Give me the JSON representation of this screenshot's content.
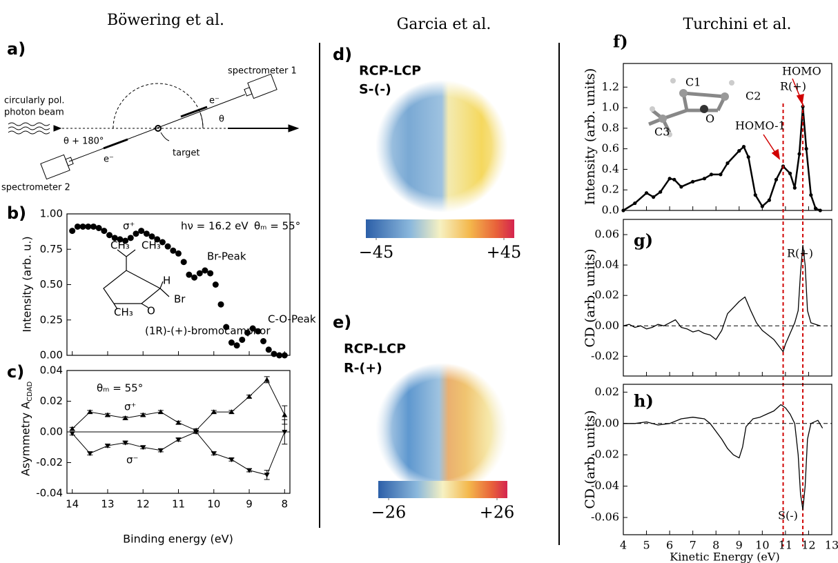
{
  "headers": [
    "Böwering et al.",
    "Garcia et al.",
    "Turchini et al."
  ],
  "panel_a": {
    "label": "a)",
    "texts": [
      "spectrometer 1",
      "circularly pol.",
      "photon beam",
      "e⁻",
      "θ",
      "θ + 180°",
      "target",
      "e⁻",
      "spectrometer 2"
    ]
  },
  "images": [
    {
      "label": "d)",
      "title": [
        "RCP-LCP",
        "S-(-)"
      ],
      "colorbar_ticks": [
        {
          "value": -45,
          "label": "−45"
        },
        {
          "value": 45,
          "label": "+45"
        }
      ]
    },
    {
      "label": "e)",
      "title": [
        "RCP-LCP",
        "R-(+)"
      ],
      "colorbar_ticks": [
        {
          "value": -26,
          "label": "−26"
        },
        {
          "value": 26,
          "label": "+26"
        }
      ]
    }
  ],
  "chart_data": [
    {
      "type": "scatter",
      "panel_label": "b)",
      "ylabel": "Intensity (arb. u.)",
      "color": "#000000",
      "x": [
        14.0,
        13.85,
        13.7,
        13.55,
        13.4,
        13.25,
        13.1,
        12.95,
        12.8,
        12.65,
        12.5,
        12.35,
        12.2,
        12.05,
        11.9,
        11.75,
        11.6,
        11.45,
        11.3,
        11.15,
        11.0,
        10.85,
        10.7,
        10.55,
        10.4,
        10.25,
        10.1,
        9.95,
        9.8,
        9.65,
        9.5,
        9.35,
        9.2,
        9.05,
        8.9,
        8.75,
        8.6,
        8.45,
        8.3,
        8.15,
        8.0
      ],
      "values": [
        0.88,
        0.91,
        0.91,
        0.91,
        0.91,
        0.9,
        0.88,
        0.85,
        0.83,
        0.82,
        0.81,
        0.83,
        0.86,
        0.88,
        0.86,
        0.84,
        0.82,
        0.8,
        0.77,
        0.74,
        0.72,
        0.66,
        0.57,
        0.55,
        0.58,
        0.6,
        0.58,
        0.5,
        0.36,
        0.2,
        0.09,
        0.07,
        0.11,
        0.16,
        0.19,
        0.17,
        0.1,
        0.04,
        0.01,
        0.0,
        0.0
      ],
      "xlim": [
        14.15,
        7.85
      ],
      "xticks": [
        14,
        13,
        12,
        11,
        10,
        9,
        8
      ],
      "ylim": [
        0,
        1.0
      ],
      "yticks": [
        {
          "value": 0,
          "label": "0.00"
        },
        0.25,
        {
          "value": 0.5,
          "label": "0.50"
        },
        0.75,
        {
          "value": 1,
          "label": "1.00"
        }
      ],
      "annotations": [
        {
          "text": "σ⁺"
        },
        {
          "text": "hν = 16.2 eV"
        },
        {
          "text": "θₘ = 55°"
        },
        {
          "text": "Br-Peak"
        },
        {
          "text": "C-O-Peak"
        },
        {
          "text": "(1R)-(+)-bromocamphor"
        },
        {
          "text": "CH₃"
        },
        {
          "text": "CH₃"
        },
        {
          "text": "H"
        },
        {
          "text": "Br"
        },
        {
          "text": "CH₃"
        },
        {
          "text": "O"
        }
      ]
    },
    {
      "type": "errorbar",
      "panel_label": "c)",
      "ylabel": "Asymmetry A",
      "ylabel_sub": "CDAD",
      "xlabel": "Binding energy (eV)",
      "zero_line": "solid",
      "x": [
        14,
        13.5,
        13,
        12.5,
        12,
        11.5,
        11,
        10.5,
        10,
        9.5,
        9,
        8.5,
        8
      ],
      "series": [
        {
          "name": "σ⁺",
          "color": "#000000",
          "marker": "triangle-up",
          "values": [
            0.002,
            0.013,
            0.011,
            0.009,
            0.011,
            0.013,
            0.006,
            0.001,
            0.013,
            0.013,
            0.023,
            0.034,
            0.011
          ],
          "errors": [
            0.001,
            0.001,
            0.001,
            0.001,
            0.001,
            0.001,
            0.001,
            0.001,
            0.001,
            0.001,
            0.001,
            0.002,
            0.006
          ]
        },
        {
          "name": "σ⁻",
          "color": "#000000",
          "marker": "triangle-down",
          "values": [
            -0.001,
            -0.014,
            -0.009,
            -0.007,
            -0.01,
            -0.012,
            -0.005,
            0.0,
            -0.014,
            -0.018,
            -0.025,
            -0.028,
            0.0
          ],
          "errors": [
            0.001,
            0.001,
            0.001,
            0.001,
            0.001,
            0.001,
            0.001,
            0.001,
            0.001,
            0.001,
            0.001,
            0.003,
            0.008
          ]
        }
      ],
      "xlim": [
        14.15,
        7.85
      ],
      "xticks": [
        14,
        13,
        12,
        11,
        10,
        9,
        8
      ],
      "ylim": [
        -0.04,
        0.04
      ],
      "yticks": [
        -0.04,
        -0.02,
        {
          "value": 0,
          "label": "0.00"
        },
        0.02,
        0.04
      ],
      "annotations": [
        {
          "text": "θₘ = 55°"
        }
      ]
    },
    {
      "type": "line",
      "panel_label": "f)",
      "ylabel": "Intensity (arb. units)",
      "color": "#000000",
      "markers": true,
      "x": [
        4.0,
        4.5,
        5.0,
        5.3,
        5.6,
        6.0,
        6.2,
        6.5,
        7.0,
        7.5,
        7.8,
        8.2,
        8.5,
        9.0,
        9.2,
        9.4,
        9.7,
        10.0,
        10.3,
        10.6,
        10.9,
        11.2,
        11.4,
        11.6,
        11.75,
        11.9,
        12.1,
        12.3,
        12.5
      ],
      "values": [
        0.0,
        0.07,
        0.17,
        0.13,
        0.18,
        0.31,
        0.3,
        0.23,
        0.28,
        0.31,
        0.35,
        0.35,
        0.46,
        0.58,
        0.62,
        0.52,
        0.15,
        0.04,
        0.1,
        0.3,
        0.43,
        0.36,
        0.22,
        0.55,
        1.01,
        0.6,
        0.15,
        0.02,
        0.0
      ],
      "xlim": [
        4,
        13
      ],
      "xticks": [
        4,
        5,
        6,
        7,
        8,
        9,
        10,
        11,
        12,
        13
      ],
      "ylim": [
        0,
        1.43
      ],
      "yticks": [
        {
          "value": 0,
          "label": "0.0"
        },
        0.2,
        0.4,
        0.6,
        0.8,
        {
          "value": 1,
          "label": "1.0"
        },
        1.2
      ],
      "reference_lines": [
        10.9,
        11.75
      ],
      "reference_color": "#d00000",
      "annotations": [
        {
          "text": "HOMO",
          "color": "#d00000"
        },
        {
          "text": "HOMO-1",
          "color": "#d00000"
        },
        {
          "text": "R(+)"
        },
        {
          "text": "C1"
        },
        {
          "text": "C2"
        },
        {
          "text": "C3"
        },
        {
          "text": "O"
        }
      ]
    },
    {
      "type": "line",
      "panel_label": "g)",
      "ylabel": "CD (arb. units)",
      "color": "#000000",
      "zero_line": "dashed",
      "x": [
        4.0,
        4.25,
        4.5,
        4.75,
        5.0,
        5.25,
        5.5,
        5.75,
        6.0,
        6.25,
        6.5,
        6.75,
        7.0,
        7.25,
        7.5,
        7.75,
        8.0,
        8.25,
        8.5,
        8.75,
        9.0,
        9.25,
        9.5,
        9.75,
        10.0,
        10.25,
        10.5,
        10.75,
        10.9,
        11.0,
        11.2,
        11.4,
        11.55,
        11.65,
        11.75,
        11.85,
        11.95,
        12.1,
        12.3,
        12.5
      ],
      "values": [
        0.0,
        0.001,
        -0.001,
        0.0,
        -0.002,
        -0.001,
        0.001,
        0.0,
        0.002,
        0.004,
        -0.001,
        -0.002,
        -0.004,
        -0.003,
        -0.005,
        -0.006,
        -0.009,
        -0.003,
        0.008,
        0.012,
        0.016,
        0.019,
        0.01,
        0.002,
        -0.003,
        -0.006,
        -0.009,
        -0.014,
        -0.017,
        -0.012,
        -0.005,
        0.002,
        0.01,
        0.035,
        0.053,
        0.04,
        0.01,
        0.002,
        0.001,
        0.0
      ],
      "xlim": [
        4,
        13
      ],
      "xticks": [
        4,
        5,
        6,
        7,
        8,
        9,
        10,
        11,
        12,
        13
      ],
      "ylim": [
        -0.033,
        0.07
      ],
      "yticks": [
        -0.02,
        {
          "value": 0,
          "label": "0.00"
        },
        0.02,
        0.04,
        0.06
      ],
      "annotations": [
        {
          "text": "R(+)"
        }
      ]
    },
    {
      "type": "line",
      "panel_label": "h)",
      "ylabel": "CD (arb. units)",
      "xlabel": "Kinetic Energy (eV)",
      "color": "#000000",
      "zero_line": "dashed",
      "x": [
        4.0,
        4.5,
        5.0,
        5.5,
        6.0,
        6.5,
        7.0,
        7.5,
        7.75,
        8.0,
        8.25,
        8.5,
        8.75,
        9.0,
        9.15,
        9.3,
        9.6,
        9.9,
        10.2,
        10.5,
        10.8,
        11.0,
        11.2,
        11.4,
        11.55,
        11.65,
        11.75,
        11.85,
        11.95,
        12.1,
        12.4,
        12.6
      ],
      "values": [
        0.0,
        0.0,
        0.001,
        -0.001,
        0.0,
        0.003,
        0.004,
        0.003,
        0.0,
        -0.005,
        -0.01,
        -0.016,
        -0.02,
        -0.022,
        -0.015,
        -0.002,
        0.003,
        0.004,
        0.006,
        0.008,
        0.012,
        0.01,
        0.006,
        0.0,
        -0.02,
        -0.045,
        -0.055,
        -0.04,
        -0.01,
        0.0,
        0.002,
        -0.003
      ],
      "xlim": [
        4,
        13
      ],
      "xticks": [
        4,
        5,
        6,
        7,
        8,
        9,
        10,
        11,
        12,
        13
      ],
      "ylim": [
        -0.071,
        0.025
      ],
      "yticks": [
        -0.06,
        -0.04,
        -0.02,
        {
          "value": 0,
          "label": "0.00"
        },
        0.02
      ],
      "annotations": [
        {
          "text": "S(-)"
        }
      ]
    }
  ]
}
